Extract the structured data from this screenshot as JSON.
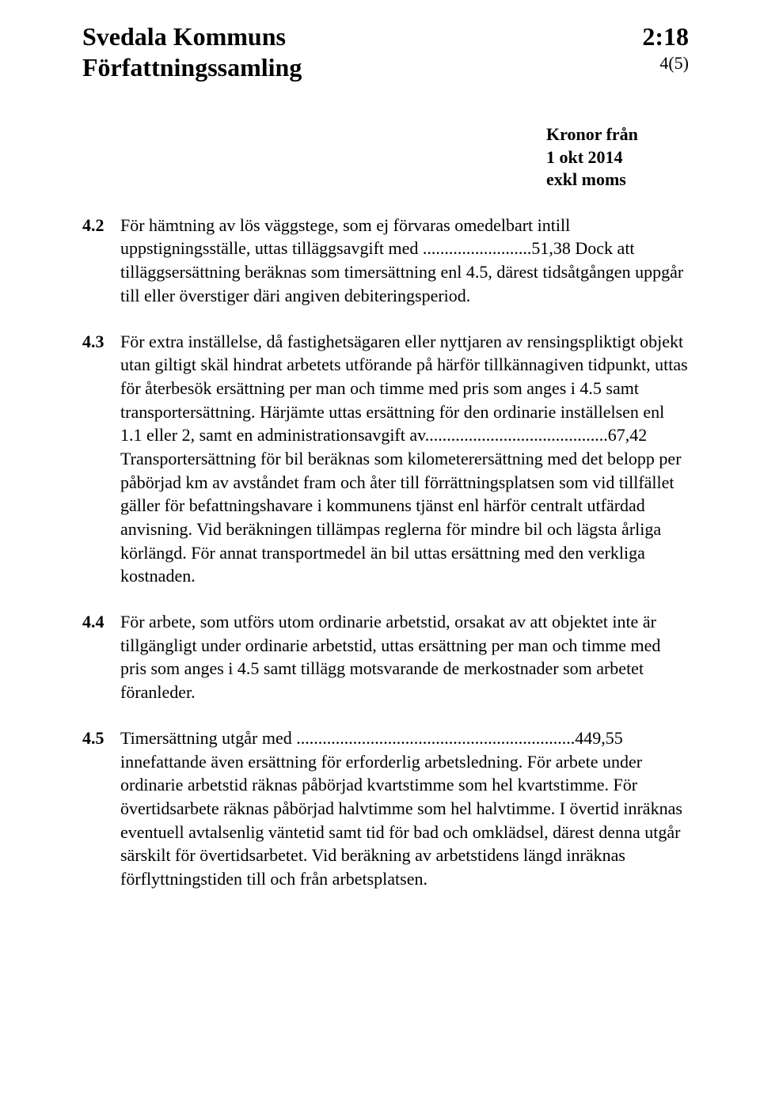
{
  "header": {
    "title": "Svedala Kommuns",
    "code": "2:18",
    "subtitle": "Författningssamling",
    "page": "4(5)"
  },
  "rightNote": {
    "line1": "Kronor från",
    "line2": "1 okt 2014",
    "line3": "exkl moms"
  },
  "sections": [
    {
      "num": "4.2",
      "text": "För hämtning av lös väggstege, som ej förvaras omedelbart intill uppstigningsställe, uttas tilläggsavgift med .........................51,38 Dock att tilläggsersättning beräknas som timersättning enl 4.5, därest tidsåtgången uppgår till eller överstiger däri angiven debiteringsperiod."
    },
    {
      "num": "4.3",
      "text": "För extra inställelse, då fastighetsägaren eller nyttjaren av rensingspliktigt objekt utan giltigt skäl hindrat arbetets utförande på härför tillkännagiven tidpunkt, uttas för återbesök ersättning per man och timme med pris som anges i 4.5 samt transportersättning. Härjämte uttas ersättning för den ordinarie inställelsen enl 1.1 eller 2, samt en administrationsavgift av..........................................67,42 Transportersättning för bil beräknas som kilometerersättning med det belopp per påbörjad km av avståndet fram och åter till förrättningsplatsen som vid tillfället gäller för befattningshavare i kommunens tjänst enl härför centralt utfärdad anvisning. Vid beräkningen tillämpas reglerna för mindre bil och lägsta årliga körlängd. För annat transportmedel än bil uttas ersättning med den verkliga kostnaden."
    },
    {
      "num": "4.4",
      "text": "För arbete, som utförs utom ordinarie arbetstid, orsakat av att objektet inte är tillgängligt under ordinarie arbetstid, uttas ersättning per man och timme med pris som anges i 4.5 samt tillägg motsvarande de merkostnader som arbetet föranleder."
    },
    {
      "num": "4.5",
      "text": "Timersättning utgår med ................................................................449,55 innefattande även ersättning för erforderlig arbetsledning. För arbete under ordinarie arbetstid räknas påbörjad kvartstimme som hel kvartstimme. För övertidsarbete räknas påbörjad halvtimme som hel halvtimme. I övertid inräknas eventuell avtalsenlig väntetid samt tid för bad och omklädsel, därest denna utgår särskilt för övertidsarbetet. Vid beräkning av arbetstidens längd inräknas förflyttningstiden till och från arbetsplatsen."
    }
  ]
}
